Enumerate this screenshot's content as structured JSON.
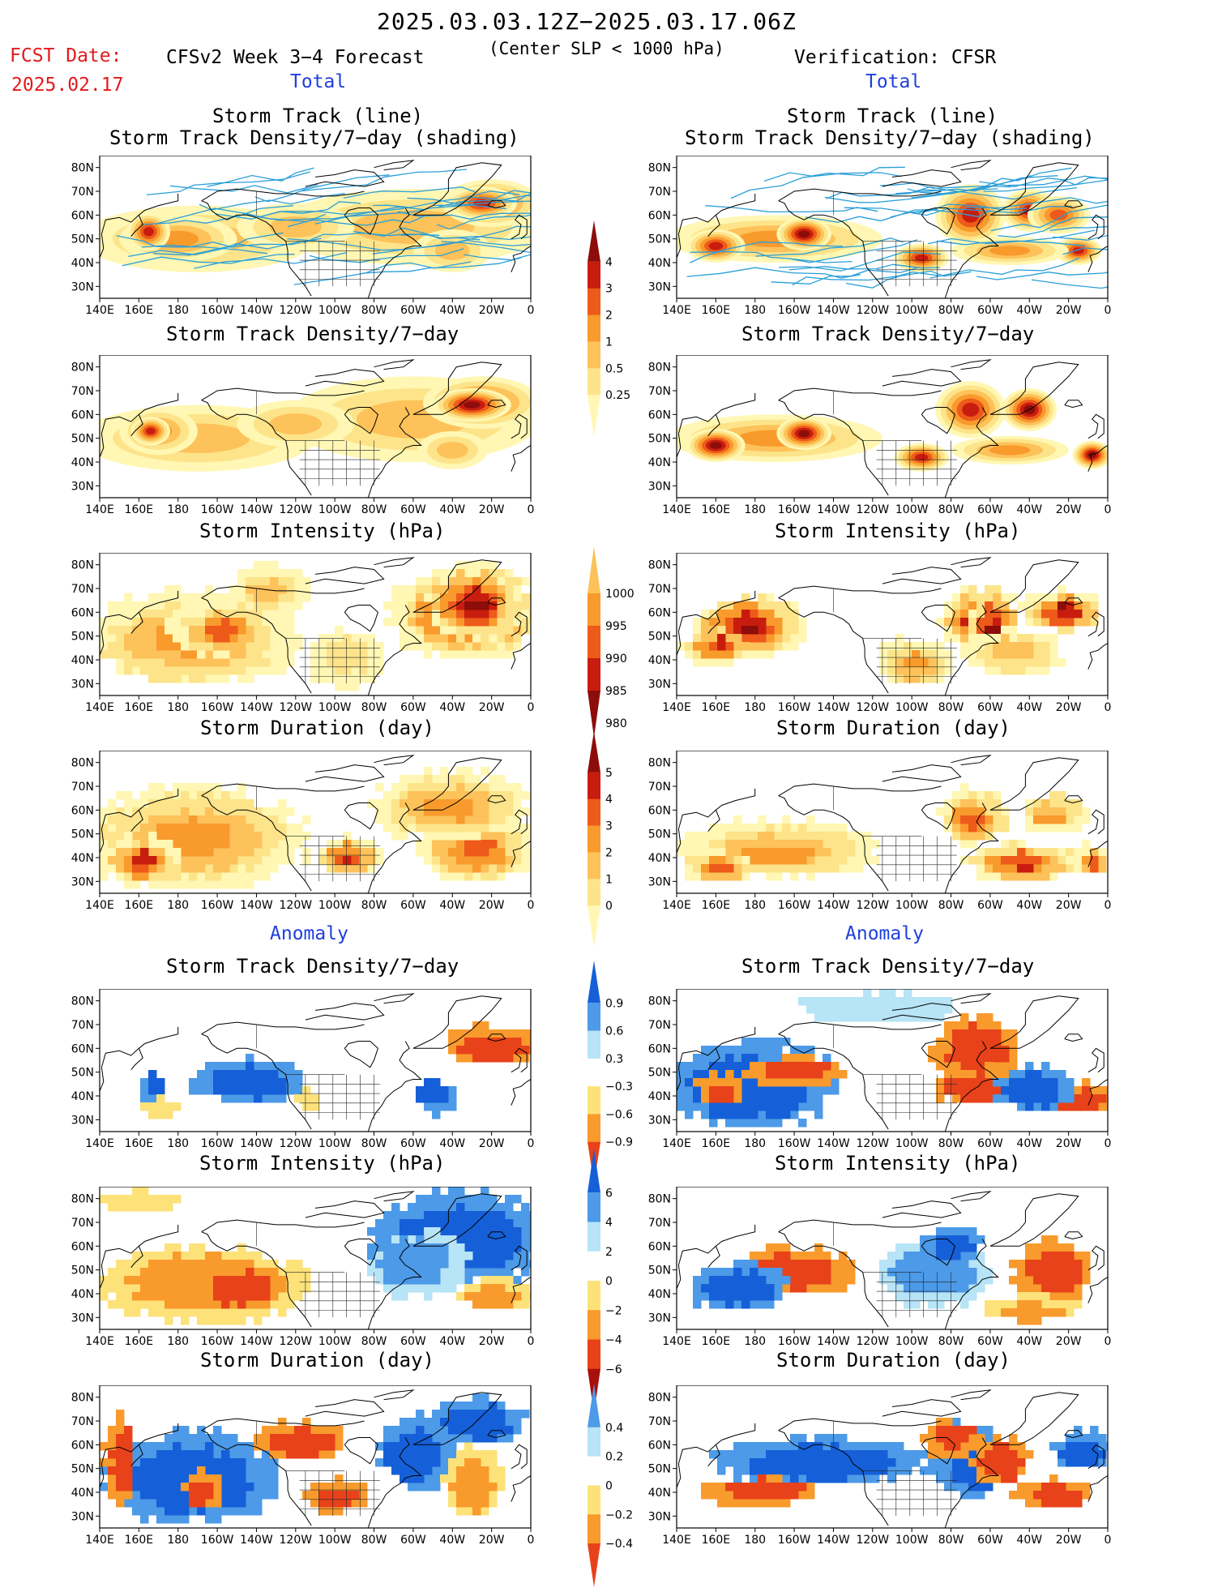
{
  "header": {
    "title": "2025.03.03.12Z−2025.03.17.06Z",
    "fcst_label": "FCST Date:",
    "fcst_date": "2025.02.17",
    "model": "CFSv2 Week 3−4 Forecast",
    "criterion": "(Center SLP < 1000 hPa)",
    "verification": "Verification: CFSR"
  },
  "sections": {
    "total_left": "Total",
    "total_right": "Total",
    "anomaly_left": "Anomaly",
    "anomaly_right": "Anomaly"
  },
  "panel_titles": {
    "track_line": "Storm Track (line)",
    "track_density_shading": "Storm Track Density/7−day (shading)",
    "track_density": "Storm Track Density/7−day",
    "intensity": "Storm Intensity (hPa)",
    "duration": "Storm Duration (day)"
  },
  "axes": {
    "lat_labels": [
      "80N",
      "70N",
      "60N",
      "50N",
      "40N",
      "30N"
    ],
    "lon_labels": [
      "140E",
      "160E",
      "180",
      "160W",
      "140W",
      "120W",
      "100W",
      "80W",
      "60W",
      "40W",
      "20W",
      "0"
    ]
  },
  "colorbars": {
    "density_total": [
      "4",
      "3",
      "2",
      "1",
      "0.5",
      "0.25"
    ],
    "intensity_total": [
      "1000",
      "995",
      "990",
      "985",
      "980"
    ],
    "duration_total": [
      "5",
      "4",
      "3",
      "2",
      "1",
      "0"
    ],
    "density_anom": [
      "0.9",
      "0.6",
      "0.3",
      "−0.3",
      "−0.6",
      "−0.9"
    ],
    "intensity_anom": [
      "6",
      "4",
      "2",
      "0",
      "−2",
      "−4",
      "−6"
    ],
    "duration_anom": [
      "0.4",
      "0.2",
      "0",
      "−0.2",
      "−0.4"
    ]
  },
  "colors": {
    "total_scale": [
      "#fff7b3",
      "#fde48a",
      "#fdc25a",
      "#f99a2c",
      "#ee5a1a",
      "#c81d0e",
      "#8c0d09"
    ],
    "anomaly_scale": [
      "#1560d8",
      "#4c9ae8",
      "#b7e4f6",
      "#ffffff",
      "#fde27a",
      "#f99a2c",
      "#e8421a"
    ],
    "track_line": "#2a9fd8",
    "coast": "#000000",
    "highlight_red": "#e31a1c",
    "highlight_blue": "#1f3fdc"
  }
}
